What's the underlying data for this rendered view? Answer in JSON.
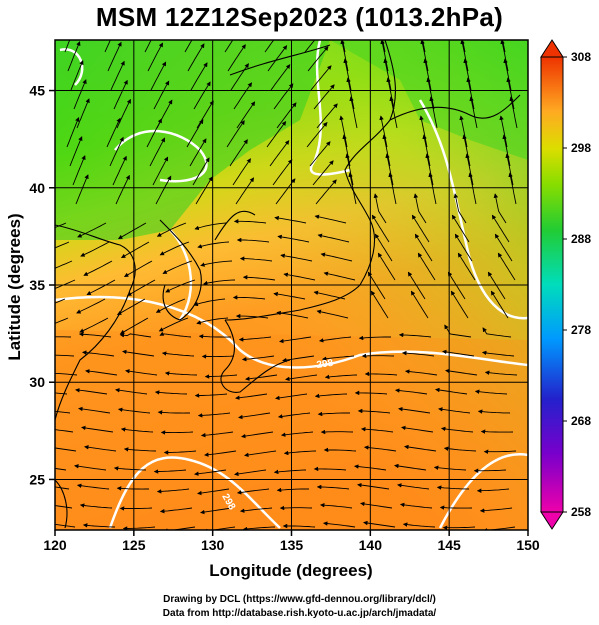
{
  "title": "MSM 12Z12Sep2023 (1013.2hPa)",
  "x_axis": {
    "label": "Longitude (degrees)",
    "ticks": [
      "120",
      "125",
      "130",
      "135",
      "140",
      "145",
      "150"
    ],
    "range": [
      120,
      150
    ]
  },
  "y_axis": {
    "label": "Latitude  (degrees)",
    "ticks": [
      "25",
      "30",
      "35",
      "40",
      "45"
    ],
    "range": [
      22.4,
      47.6
    ]
  },
  "colorbar": {
    "labels": [
      "308",
      "298",
      "288",
      "278",
      "268",
      "258"
    ],
    "range": [
      258,
      308
    ],
    "colors": [
      "#ee00aa",
      "#3300cc",
      "#0099ff",
      "#00ddcc",
      "#22cc44",
      "#77dd00",
      "#dddd00",
      "#ffbb22",
      "#ff8800",
      "#ee3300"
    ]
  },
  "contour_labels": [
    "298",
    "298"
  ],
  "credit_line1": "Drawing by DCL (https://www.gfd-dennou.org/library/dcl/)",
  "credit_line2": "Data from http://database.rish.kyoto-u.ac.jp/arch/jmadata/"
}
